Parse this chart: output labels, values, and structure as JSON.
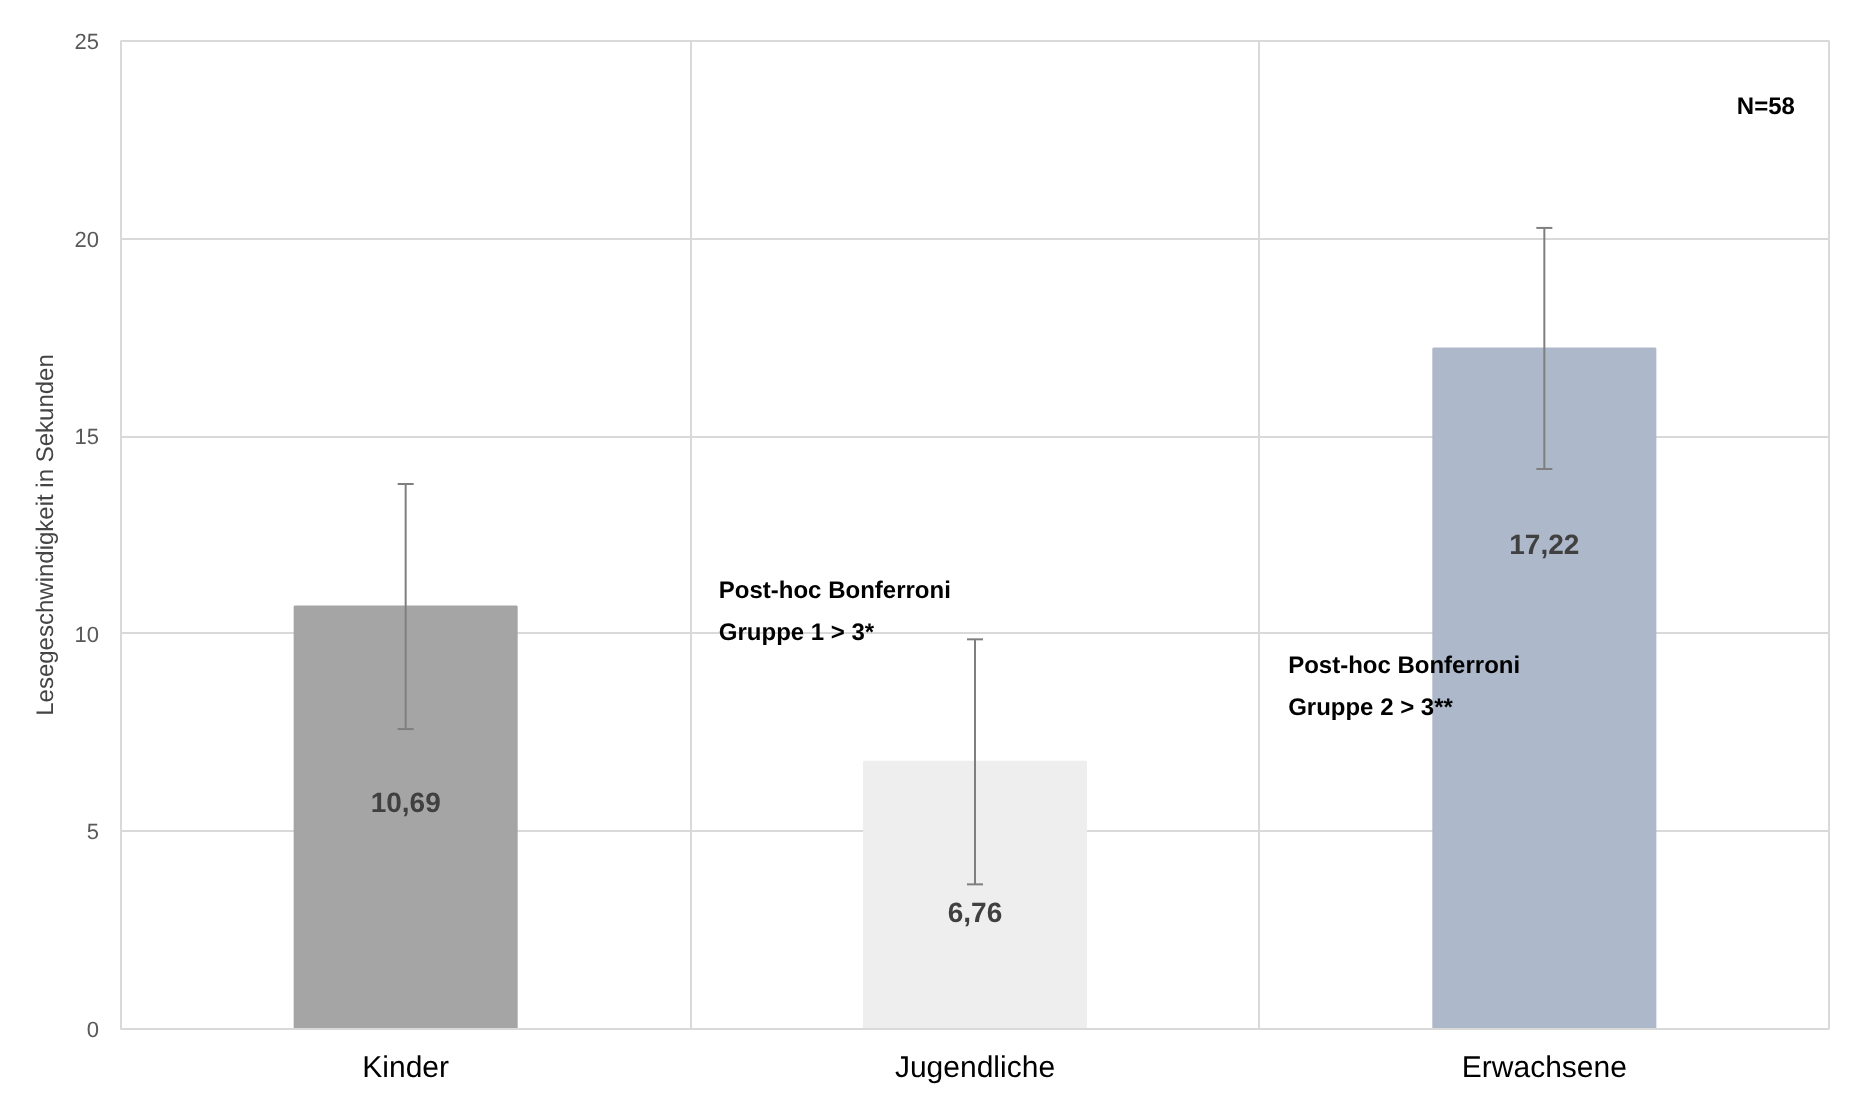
{
  "chart_data": {
    "type": "bar",
    "ylabel": "Lesegeschwindigkeit in Sekunden",
    "categories": [
      "Kinder",
      "Jugendliche",
      "Erwachsene"
    ],
    "values": [
      10.69,
      6.76,
      17.22
    ],
    "colors": [
      "#a5a5a5",
      "#efeeee",
      "#adb8ca"
    ],
    "errors": [
      3.1,
      3.1,
      3.05
    ],
    "value_labels": [
      "10,69",
      "6,76",
      "17,22"
    ],
    "ylim": [
      0,
      25
    ],
    "yticks": [
      0,
      5,
      10,
      15,
      20,
      25
    ],
    "grid": true,
    "annotations": [
      "Post-hoc Bonferroni\nGruppe 1 > 3*",
      "Post-hoc Bonferroni\nGruppe 2 > 3**",
      "N=58"
    ]
  }
}
